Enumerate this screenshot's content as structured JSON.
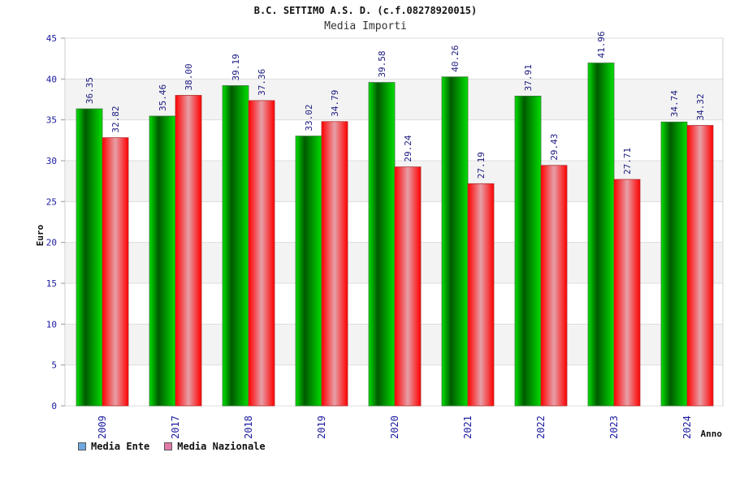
{
  "chart_data": {
    "type": "bar",
    "title": "B.C. SETTIMO A.S. D. (c.f.08278920015)",
    "subtitle": "Media Importi",
    "xlabel": "Anno",
    "ylabel": "Euro",
    "ylim": [
      0,
      45
    ],
    "yticks": [
      "0",
      "5",
      "10",
      "15",
      "20",
      "25",
      "30",
      "35",
      "40",
      "45"
    ],
    "categories": [
      "2009",
      "2017",
      "2018",
      "2019",
      "2020",
      "2021",
      "2022",
      "2023",
      "2024"
    ],
    "series": [
      {
        "name": "Media Ente",
        "values": [
          36.35,
          35.46,
          39.19,
          33.02,
          39.58,
          40.26,
          37.91,
          41.96,
          34.74
        ],
        "labels": [
          "36.35",
          "35.46",
          "39.19",
          "33.02",
          "39.58",
          "40.26",
          "37.91",
          "41.96",
          "34.74"
        ],
        "color": "#00c000",
        "legend_color": "#6fa8e0"
      },
      {
        "name": "Media Nazionale",
        "values": [
          32.82,
          38.0,
          37.36,
          34.79,
          29.24,
          27.19,
          29.43,
          27.71,
          34.32
        ],
        "labels": [
          "32.82",
          "38.00",
          "37.36",
          "34.79",
          "29.24",
          "27.19",
          "29.43",
          "27.71",
          "34.32"
        ],
        "color": "#ff0000",
        "legend_color": "#e07aa8"
      }
    ],
    "legend_position": "bottom-left",
    "grid": true
  }
}
